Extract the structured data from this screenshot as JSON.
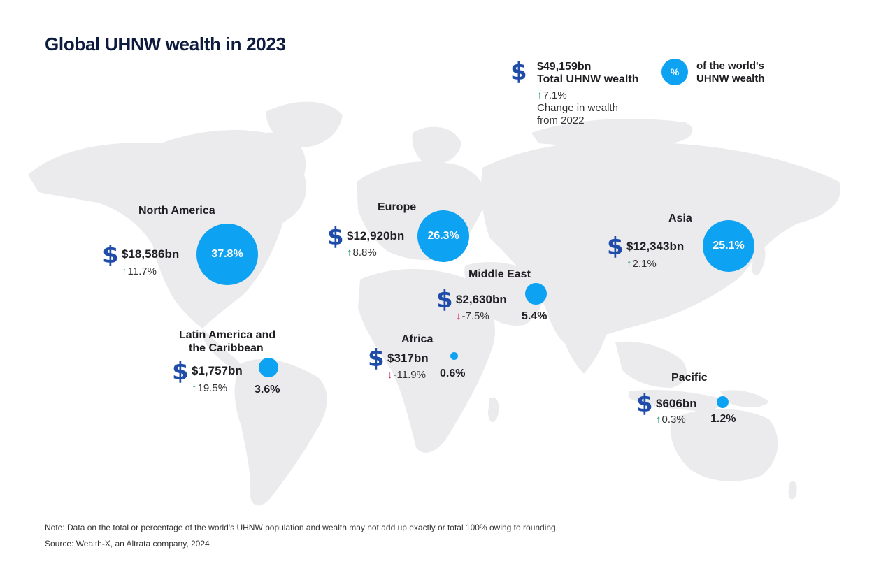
{
  "title": "Global UHNW wealth in 2023",
  "colors": {
    "bubble": "#0ea2f3",
    "dollar": "#1f4ca8",
    "up": "#1a9a7a",
    "down": "#c8205a",
    "land": "#ebebed"
  },
  "legend": {
    "dollar_icon": "dollar-sign-icon",
    "total_value": "$49,159bn",
    "total_label": "Total UHNW wealth",
    "change_arrow": "↑",
    "change_value": "7.1%",
    "change_label_1": "Change in wealth",
    "change_label_2": "from 2022",
    "pct_symbol": "%",
    "pct_label_1": "of the world's",
    "pct_label_2": "UHNW wealth"
  },
  "regions": {
    "north_america": {
      "name": "North America",
      "wealth": "$18,586bn",
      "arrow": "↑",
      "change": "11.7%",
      "share": "37.8%",
      "share_value": 37.8
    },
    "europe": {
      "name": "Europe",
      "wealth": "$12,920bn",
      "arrow": "↑",
      "change": "8.8%",
      "share": "26.3%",
      "share_value": 26.3
    },
    "asia": {
      "name": "Asia",
      "wealth": "$12,343bn",
      "arrow": "↑",
      "change": "2.1%",
      "share": "25.1%",
      "share_value": 25.1
    },
    "middle_east": {
      "name": "Middle East",
      "wealth": "$2,630bn",
      "arrow": "↓",
      "change": "-7.5%",
      "share": "5.4%",
      "share_value": 5.4
    },
    "latin_america": {
      "name_1": "Latin America and",
      "name_2": "the Caribbean",
      "wealth": "$1,757bn",
      "arrow": "↑",
      "change": "19.5%",
      "share": "3.6%",
      "share_value": 3.6
    },
    "africa": {
      "name": "Africa",
      "wealth": "$317bn",
      "arrow": "↓",
      "change": "-11.9%",
      "share": "0.6%",
      "share_value": 0.6
    },
    "pacific": {
      "name": "Pacific",
      "wealth": "$606bn",
      "arrow": "↑",
      "change": "0.3%",
      "share": "1.2%",
      "share_value": 1.2
    }
  },
  "footer": {
    "note": "Note: Data on the total or percentage of the world's UHNW population and wealth may not add up exactly or total 100% owing to rounding.",
    "source": "Source: Wealth-X, an Altrata company, 2024"
  }
}
